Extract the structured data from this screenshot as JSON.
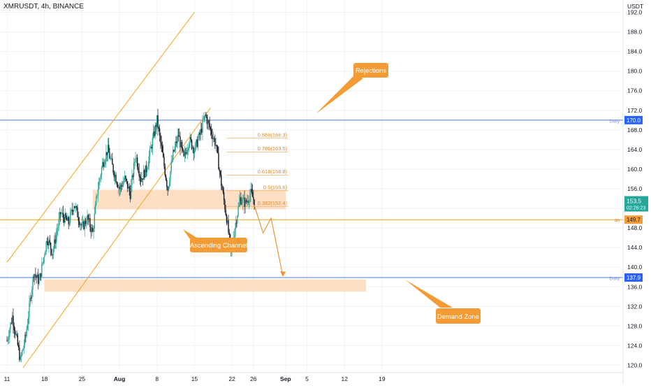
{
  "header": {
    "title": "XMRUSDT, 4h, BINANCE",
    "currency": "USDT"
  },
  "colors": {
    "up": "#26a69a",
    "down": "#131722",
    "grid": "#f0f3fa",
    "channel": "#f7a21b",
    "zone": "#fcd9bb",
    "blue_line": "#4f7ce6",
    "orange_label": "#f39c35",
    "dark_label": "#131722",
    "teal_label": "#26a69a",
    "blue_label": "#2962ff"
  },
  "chart_data": {
    "type": "candlestick",
    "y_ticks": [
      "120.0",
      "124.0",
      "128.0",
      "132.0",
      "136.0",
      "140.0",
      "144.0",
      "148.0",
      "152.0",
      "156.0",
      "160.0",
      "164.0",
      "168.0",
      "172.0",
      "176.0",
      "180.0",
      "184.0",
      "188.0",
      "192.0"
    ],
    "x_ticks": [
      "11",
      "18",
      "25",
      "Aug",
      "8",
      "15",
      "22",
      "26",
      "Sep",
      "5",
      "12",
      "19"
    ],
    "ylim": [
      118.5,
      194.5
    ],
    "x_days": {
      "11": 0,
      "18": 7,
      "25": 14,
      "Aug": 21,
      "8": 28,
      "15": 35,
      "22": 42,
      "26": 46,
      "Sep": 52,
      "5": 56,
      "12": 63,
      "19": 70
    },
    "anchors": [
      {
        "day": 0,
        "price": 125
      },
      {
        "day": 1,
        "price": 130
      },
      {
        "day": 2.5,
        "price": 121
      },
      {
        "day": 3.5,
        "price": 126
      },
      {
        "day": 5,
        "price": 139
      },
      {
        "day": 6,
        "price": 137
      },
      {
        "day": 7.5,
        "price": 146
      },
      {
        "day": 8.5,
        "price": 143
      },
      {
        "day": 10,
        "price": 151
      },
      {
        "day": 11.5,
        "price": 149
      },
      {
        "day": 12.5,
        "price": 153
      },
      {
        "day": 14,
        "price": 148
      },
      {
        "day": 15,
        "price": 150
      },
      {
        "day": 16,
        "price": 147
      },
      {
        "day": 16.8,
        "price": 155
      },
      {
        "day": 17.8,
        "price": 161
      },
      {
        "day": 18.8,
        "price": 164
      },
      {
        "day": 19.8,
        "price": 160
      },
      {
        "day": 21,
        "price": 156
      },
      {
        "day": 22,
        "price": 158
      },
      {
        "day": 23,
        "price": 155
      },
      {
        "day": 24,
        "price": 163
      },
      {
        "day": 25,
        "price": 158
      },
      {
        "day": 26,
        "price": 160
      },
      {
        "day": 27,
        "price": 165
      },
      {
        "day": 28,
        "price": 170
      },
      {
        "day": 29,
        "price": 163
      },
      {
        "day": 30,
        "price": 156
      },
      {
        "day": 31,
        "price": 163
      },
      {
        "day": 32,
        "price": 167
      },
      {
        "day": 33,
        "price": 162
      },
      {
        "day": 34,
        "price": 166
      },
      {
        "day": 35,
        "price": 164
      },
      {
        "day": 36,
        "price": 167
      },
      {
        "day": 37,
        "price": 171
      },
      {
        "day": 38,
        "price": 168
      },
      {
        "day": 39,
        "price": 165
      },
      {
        "day": 40,
        "price": 157
      },
      {
        "day": 41,
        "price": 150
      },
      {
        "day": 41.8,
        "price": 143
      },
      {
        "day": 42.5,
        "price": 148
      },
      {
        "day": 43.5,
        "price": 154
      },
      {
        "day": 44.5,
        "price": 153
      },
      {
        "day": 45.5,
        "price": 155
      },
      {
        "day": 46.2,
        "price": 153.5
      }
    ],
    "levels": [
      {
        "name": "daily-170",
        "price": 170.0,
        "label": "Daily",
        "tag": "170.0",
        "color": "blue"
      },
      {
        "name": "daily-137",
        "price": 137.9,
        "label": "Daily",
        "tag": "137.9",
        "color": "blue"
      },
      {
        "name": "level-149",
        "price": 149.7,
        "label": "4h",
        "tag": "149.7",
        "color": "orange"
      }
    ],
    "zones": [
      {
        "name": "supply-zone",
        "from_day": 16,
        "to_day": 52,
        "top": 155.8,
        "bottom": 151.8
      },
      {
        "name": "demand-zone",
        "from_day": 7,
        "to_day": 67,
        "top": 137.5,
        "bottom": 135.0
      }
    ],
    "fib_levels": [
      {
        "label": "0.886(166.3)",
        "price": 166.3
      },
      {
        "label": "0.786(163.5)",
        "price": 163.5
      },
      {
        "label": "0.618(158.8)",
        "price": 158.8
      },
      {
        "label": "0.5(155.6)",
        "price": 155.6
      },
      {
        "label": "0.382(152.4)",
        "price": 152.4
      }
    ],
    "channel": {
      "lower": [
        {
          "day": 3,
          "price": 119.5
        },
        {
          "day": 38,
          "price": 172.5
        }
      ],
      "upper": [
        {
          "day": 0,
          "price": 141
        },
        {
          "day": 35,
          "price": 192
        }
      ]
    },
    "projection": [
      {
        "day": 46.2,
        "price": 152.5
      },
      {
        "day": 47.8,
        "price": 147
      },
      {
        "day": 49.3,
        "price": 150
      },
      {
        "day": 51.5,
        "price": 138.2
      }
    ],
    "price_tags": [
      {
        "value": "153.5",
        "sub": "02:26:23",
        "color": "teal"
      }
    ],
    "annotations": [
      {
        "text": "Rejections",
        "color": "orange"
      },
      {
        "text": "Ascending Channel",
        "color": "orange"
      },
      {
        "text": "Demand Zone",
        "color": "orange"
      }
    ]
  }
}
